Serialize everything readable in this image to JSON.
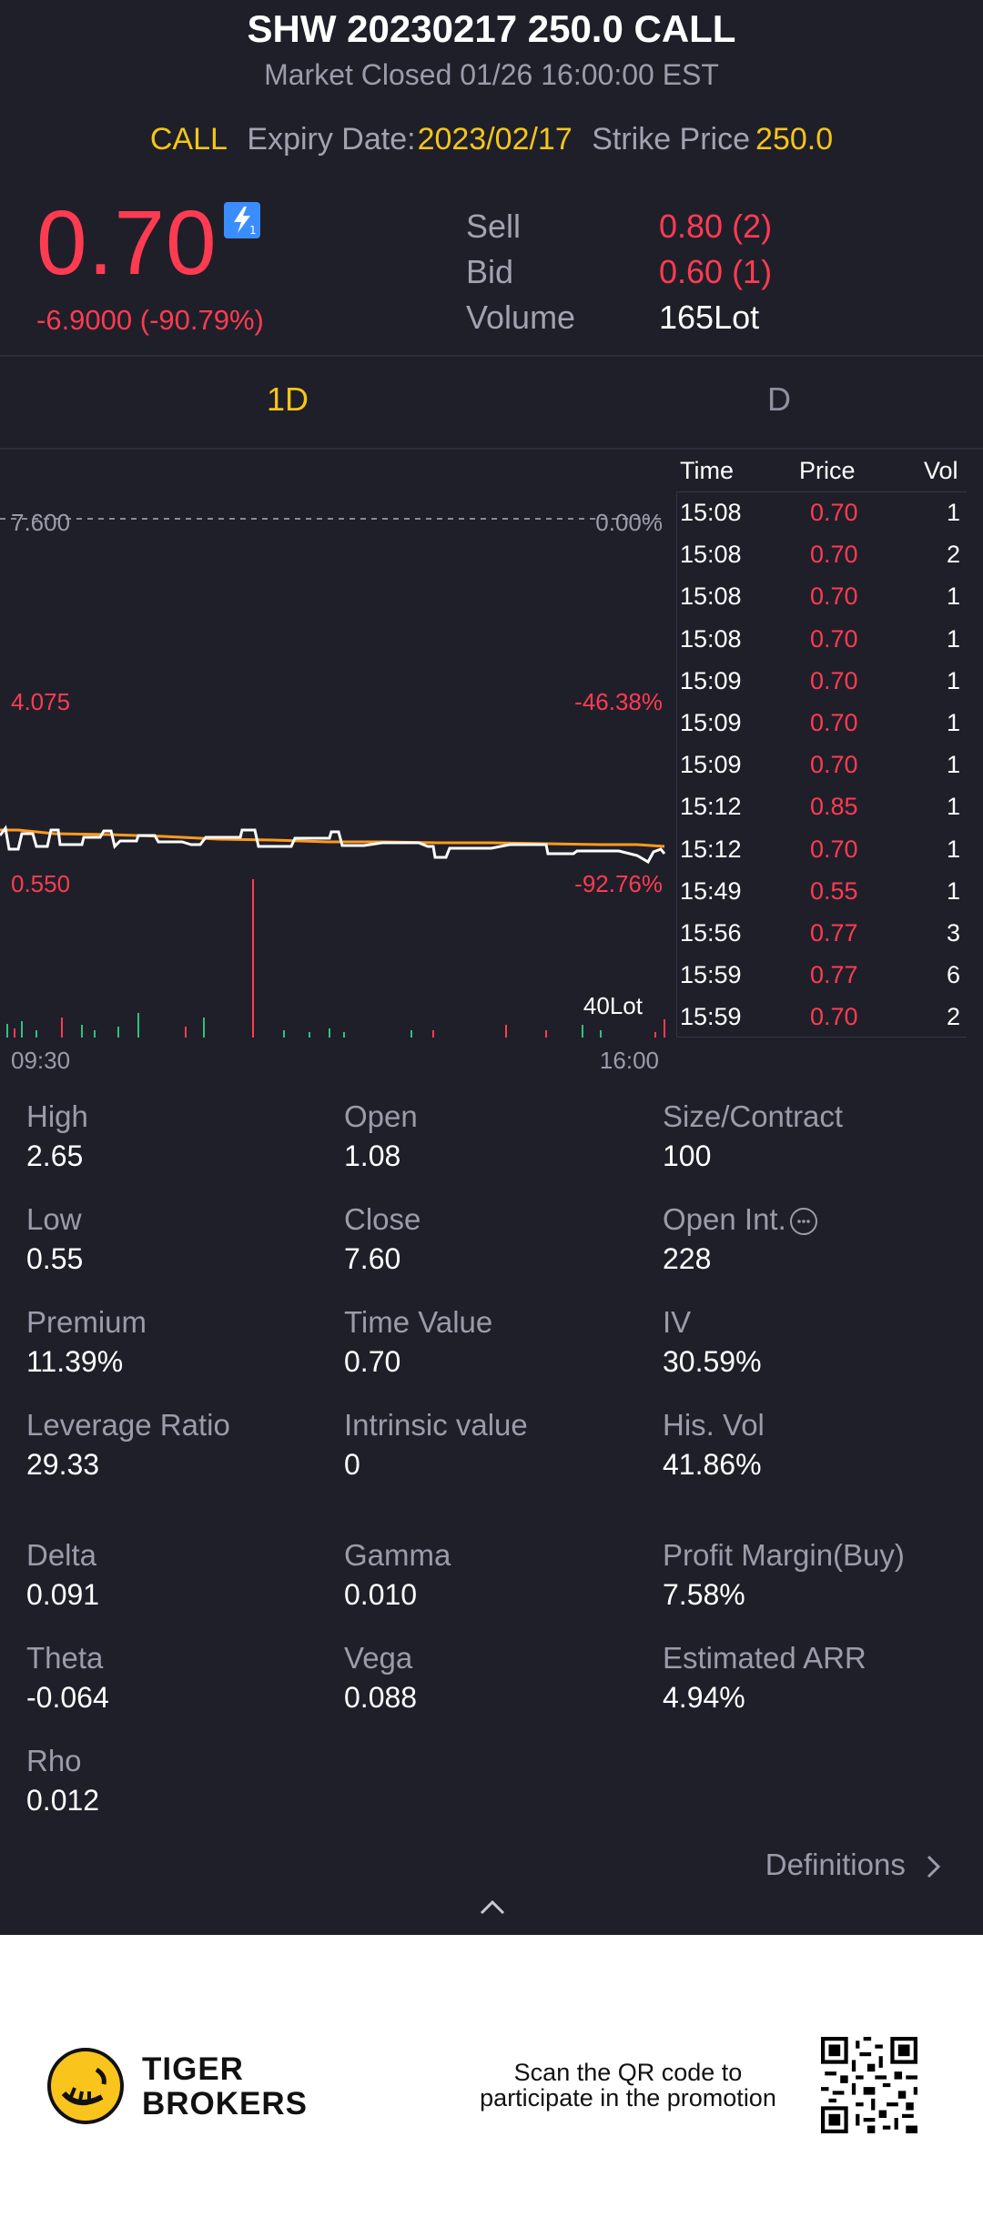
{
  "header": {
    "title": "SHW 20230217 250.0 CALL",
    "subtitle": "Market Closed 01/26 16:00:00 EST",
    "type": "CALL",
    "expiry_label": "Expiry Date:",
    "expiry_value": "2023/02/17",
    "strike_label": "Strike Price",
    "strike_value": "250.0"
  },
  "price": {
    "last": "0.70",
    "change": "-6.9000 (-90.79%)",
    "badge_icon": "flash-icon"
  },
  "quote": [
    {
      "label": "Sell",
      "value": "0.80 (2)",
      "color": "#ff3b52"
    },
    {
      "label": "Bid",
      "value": "0.60 (1)",
      "color": "#ff3b52"
    },
    {
      "label": "Volume",
      "value": "165Lot",
      "color": "#ffffff"
    }
  ],
  "tabs": [
    "1D",
    "D"
  ],
  "chart": {
    "y_labels": {
      "top": "7.600",
      "mid": "4.075",
      "low": "0.550"
    },
    "pct_labels": {
      "top": "0.00%",
      "mid": "-46.38%",
      "low": "-92.76%"
    },
    "x_labels": {
      "start": "09:30",
      "end": "16:00"
    },
    "volume_label": "40Lot",
    "colors": {
      "price_line": "#ffffff",
      "avg_line": "#ff9a1f",
      "up": "#2ec27e",
      "down": "#ff3b52"
    }
  },
  "chart_data": {
    "type": "line",
    "x_range": [
      "09:30",
      "16:00"
    ],
    "ylim": [
      0.55,
      7.6
    ],
    "pct_range": [
      "0.00%",
      "-92.76%"
    ],
    "series": [],
    "reference_line": 7.6,
    "volume_max": "40Lot"
  },
  "trades": {
    "headers": {
      "time": "Time",
      "price": "Price",
      "vol": "Vol"
    },
    "rows": [
      {
        "time": "15:08",
        "price": "0.70",
        "vol": "1"
      },
      {
        "time": "15:08",
        "price": "0.70",
        "vol": "2"
      },
      {
        "time": "15:08",
        "price": "0.70",
        "vol": "1"
      },
      {
        "time": "15:08",
        "price": "0.70",
        "vol": "1"
      },
      {
        "time": "15:09",
        "price": "0.70",
        "vol": "1"
      },
      {
        "time": "15:09",
        "price": "0.70",
        "vol": "1"
      },
      {
        "time": "15:09",
        "price": "0.70",
        "vol": "1"
      },
      {
        "time": "15:12",
        "price": "0.85",
        "vol": "1"
      },
      {
        "time": "15:12",
        "price": "0.70",
        "vol": "1"
      },
      {
        "time": "15:49",
        "price": "0.55",
        "vol": "1"
      },
      {
        "time": "15:56",
        "price": "0.77",
        "vol": "3"
      },
      {
        "time": "15:59",
        "price": "0.77",
        "vol": "6"
      },
      {
        "time": "15:59",
        "price": "0.70",
        "vol": "2"
      }
    ]
  },
  "stats": [
    [
      {
        "label": "High",
        "value": "2.65"
      },
      {
        "label": "Open",
        "value": "1.08"
      },
      {
        "label": "Size/Contract",
        "value": "100"
      }
    ],
    [
      {
        "label": "Low",
        "value": "0.55"
      },
      {
        "label": "Close",
        "value": "7.60"
      },
      {
        "label": "Open Int.",
        "value": "228"
      }
    ],
    [
      {
        "label": "Premium",
        "value": "11.39%"
      },
      {
        "label": "Time Value",
        "value": "0.70"
      },
      {
        "label": "IV",
        "value": "30.59%"
      }
    ],
    [
      {
        "label": "Leverage Ratio",
        "value": "29.33"
      },
      {
        "label": "Intrinsic value",
        "value": "0"
      },
      {
        "label": "His. Vol",
        "value": "41.86%"
      }
    ]
  ],
  "greeks": [
    [
      {
        "label": "Delta",
        "value": "0.091"
      },
      {
        "label": "Gamma",
        "value": "0.010"
      },
      {
        "label": "Profit Margin(Buy)",
        "value": "7.58%"
      }
    ],
    [
      {
        "label": "Theta",
        "value": "-0.064"
      },
      {
        "label": "Vega",
        "value": "0.088"
      },
      {
        "label": "Estimated ARR",
        "value": "4.94%"
      }
    ],
    [
      {
        "label": "Rho",
        "value": "0.012"
      }
    ]
  ],
  "definitions_label": "Definitions",
  "footer": {
    "brand_line1": "TIGER",
    "brand_line2": "BROKERS",
    "promo_line1": "Scan the QR code to",
    "promo_line2": "participate in the promotion"
  }
}
